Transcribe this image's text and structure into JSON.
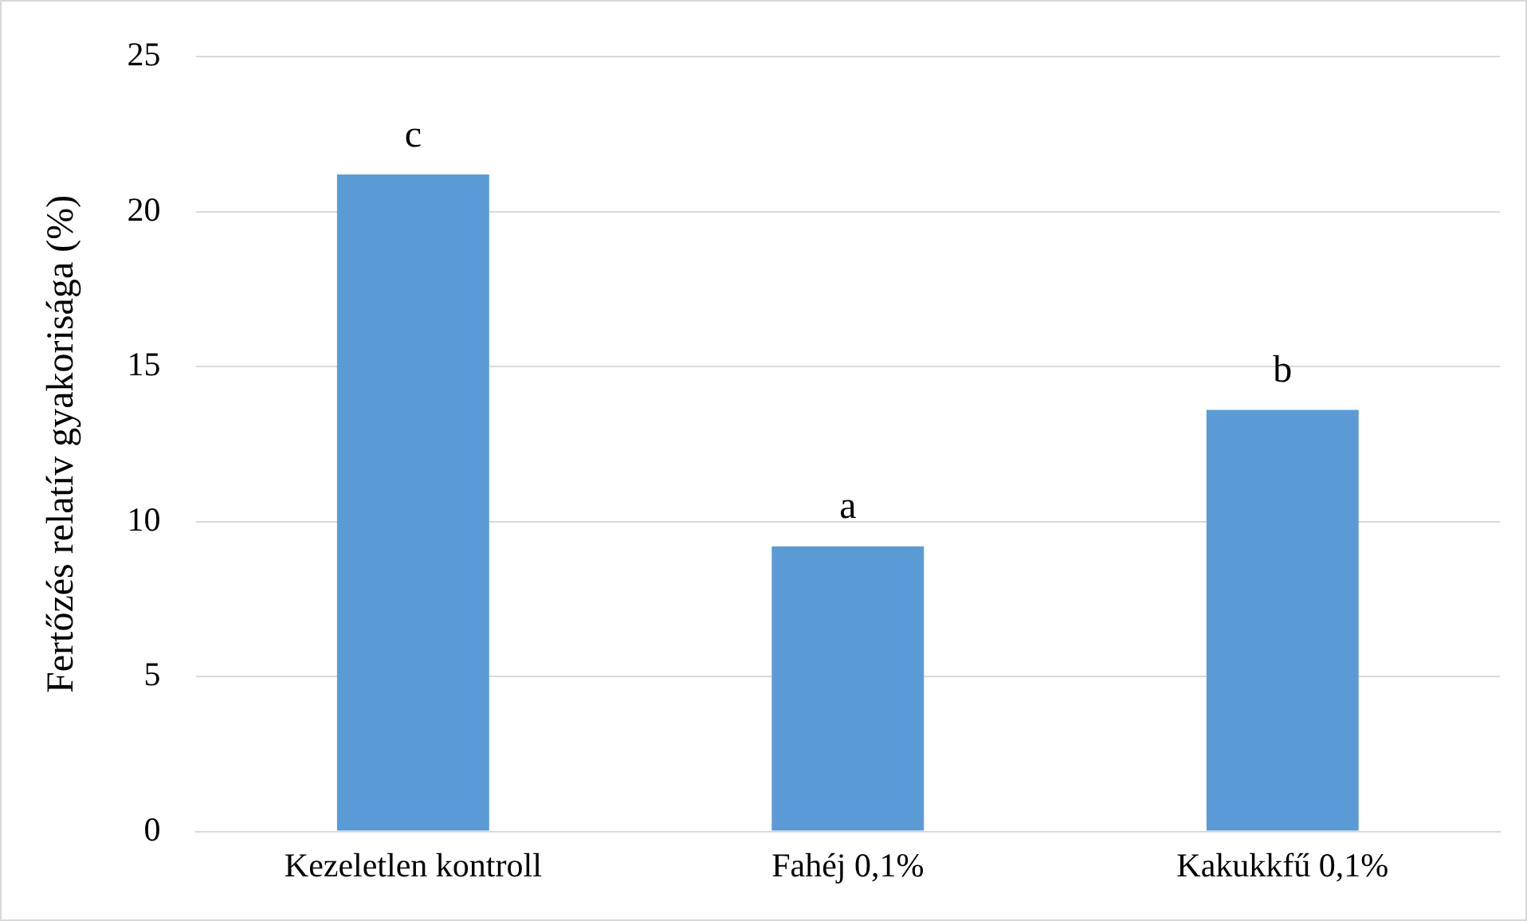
{
  "chart_data": {
    "type": "bar",
    "ylabel": "Fertőzés relatív gyakorisága (%)",
    "categories": [
      "Kezeletlen kontroll",
      "Fahéj 0,1%",
      "Kakukkfű 0,1%"
    ],
    "values": [
      21.2,
      9.2,
      13.6
    ],
    "color": "#5b9bd5",
    "ylim": [
      0,
      25
    ],
    "yticks": [
      0,
      5,
      10,
      15,
      20,
      25
    ],
    "grid": "y",
    "legend": false,
    "annotations": [
      {
        "text": "c",
        "x": "Kezeletlen kontroll",
        "y": 21.2
      },
      {
        "text": "a",
        "x": "Fahéj 0,1%",
        "y": 9.2
      },
      {
        "text": "b",
        "x": "Kakukkfű 0,1%",
        "y": 13.6
      }
    ]
  }
}
